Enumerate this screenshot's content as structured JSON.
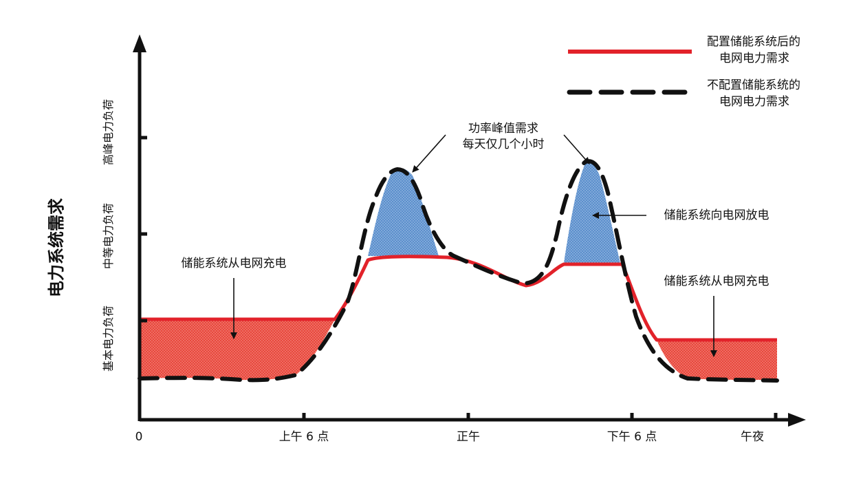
{
  "y_axis_title": "电力系统需求",
  "y_bands": [
    {
      "key": "base",
      "label": "基本电力负荷"
    },
    {
      "key": "mid",
      "label": "中等电力负荷"
    },
    {
      "key": "peak",
      "label": "高峰电力负荷"
    }
  ],
  "x_ticks": [
    "0",
    "上午 6 点",
    "正午",
    "下午 6 点",
    "午夜"
  ],
  "legend": {
    "with_storage": {
      "line1": "配置储能系统后的",
      "line2": "电网电力需求",
      "color": "#e2222a",
      "style": "solid"
    },
    "without_storage": {
      "line1": "不配置储能系统的",
      "line2": "电网电力需求",
      "color": "#111111",
      "style": "dashed"
    }
  },
  "annotations": {
    "charge_left": "储能系统从电网充电",
    "peak_line1": "功率峰值需求",
    "peak_line2": "每天仅几个小时",
    "discharge": "储能系统向电网放电",
    "charge_right": "储能系统从电网充电"
  },
  "colors": {
    "charge_fill": "#e8473c",
    "discharge_fill": "#5b8fcc",
    "grid_line": "#e2222a",
    "axis": "#111111"
  }
}
